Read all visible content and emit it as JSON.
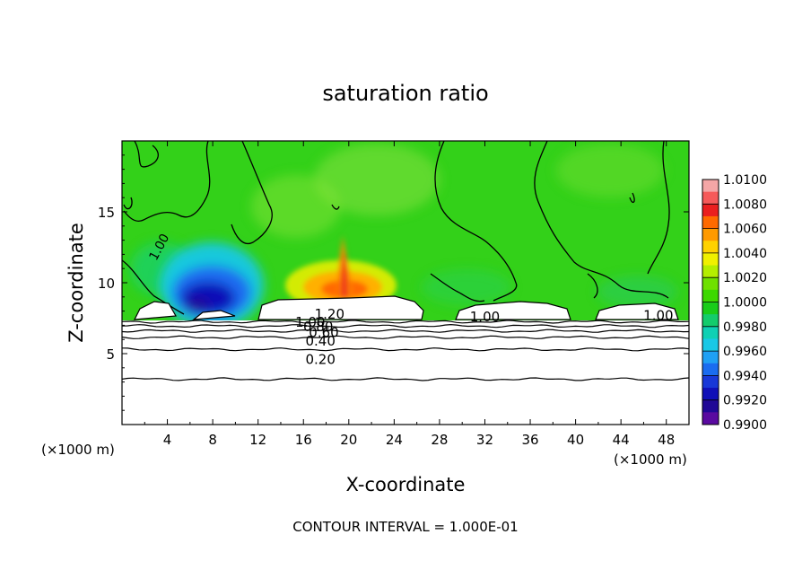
{
  "chart_data": {
    "type": "heatmap",
    "title": "saturation ratio",
    "xlabel": "X-coordinate",
    "ylabel": "Z-coordinate",
    "x_unit": "(×1000 m)",
    "x_unit_right": "(×1000 m)",
    "xlim": [
      0,
      50
    ],
    "ylim": [
      0,
      20
    ],
    "xticks": [
      4,
      8,
      12,
      16,
      20,
      24,
      28,
      32,
      36,
      40,
      44,
      48
    ],
    "yticks": [
      5,
      10,
      15
    ],
    "footer": "CONTOUR INTERVAL = 1.000E-01",
    "colorbar": {
      "levels": [
        "1.0100",
        "1.0080",
        "1.0060",
        "1.0040",
        "1.0020",
        "1.0000",
        "0.9980",
        "0.9960",
        "0.9940",
        "0.9920",
        "0.9900"
      ],
      "range": [
        0.99,
        1.01
      ],
      "colors": [
        "#f4a6a6",
        "#f65a5a",
        "#ea1f1f",
        "#ff6a00",
        "#ff9a00",
        "#ffd200",
        "#f0f000",
        "#b4ee00",
        "#6fe000",
        "#3cd800",
        "#19cc19",
        "#13cc6c",
        "#0fd0b4",
        "#19c8e6",
        "#1fa0f4",
        "#1a6cf0",
        "#1838d8",
        "#1010b8",
        "#200896",
        "#5a0aa0"
      ]
    },
    "contour_labels": [
      {
        "text": "1.00",
        "x": 3.6,
        "z": 12.7
      },
      {
        "text": "1.20",
        "x": 18.3,
        "z": 7.8
      },
      {
        "text": "1.00",
        "x": 16.6,
        "z": 7.2
      },
      {
        "text": "0.80",
        "x": 17.3,
        "z": 6.9
      },
      {
        "text": "0.60",
        "x": 17.8,
        "z": 6.5
      },
      {
        "text": "0.40",
        "x": 17.5,
        "z": 5.9
      },
      {
        "text": "0.20",
        "x": 17.5,
        "z": 4.6
      },
      {
        "text": "1.00",
        "x": 32.0,
        "z": 7.6
      },
      {
        "text": "1.00",
        "x": 47.3,
        "z": 7.7
      }
    ],
    "contour_levels": [
      {
        "level": 0.2,
        "z": 4.7
      },
      {
        "level": 0.4,
        "z": 5.9
      },
      {
        "level": 0.6,
        "z": 6.4
      },
      {
        "level": 0.8,
        "z": 6.8
      },
      {
        "level": 1.0,
        "z": 7.1
      }
    ],
    "lower_contours_z": [
      3.2,
      5.3,
      6.15,
      6.6,
      6.95,
      7.25
    ],
    "saturated_base_z": 7.3
  }
}
